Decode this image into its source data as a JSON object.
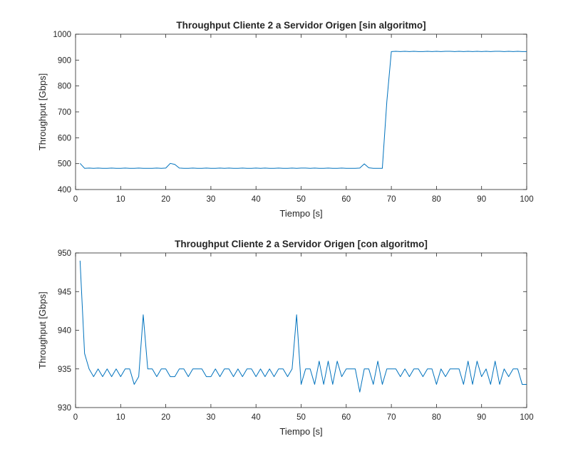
{
  "chart_data": [
    {
      "type": "line",
      "title": "Throughput Cliente 2 a Servidor Origen [sin algoritmo]",
      "xlabel": "Tiempo [s]",
      "ylabel": "Throughput [Gbps]",
      "xlim": [
        0,
        100
      ],
      "ylim": [
        400,
        1000
      ],
      "xticks": [
        0,
        10,
        20,
        30,
        40,
        50,
        60,
        70,
        80,
        90,
        100
      ],
      "yticks": [
        400,
        500,
        600,
        700,
        800,
        900,
        1000
      ],
      "grid": false,
      "line_color": "#0072BD",
      "x": [
        1,
        2,
        3,
        4,
        5,
        6,
        7,
        8,
        9,
        10,
        11,
        12,
        13,
        14,
        15,
        16,
        17,
        18,
        19,
        20,
        21,
        22,
        23,
        24,
        25,
        26,
        27,
        28,
        29,
        30,
        31,
        32,
        33,
        34,
        35,
        36,
        37,
        38,
        39,
        40,
        41,
        42,
        43,
        44,
        45,
        46,
        47,
        48,
        49,
        50,
        51,
        52,
        53,
        54,
        55,
        56,
        57,
        58,
        59,
        60,
        61,
        62,
        63,
        64,
        65,
        66,
        67,
        68,
        69,
        70,
        71,
        72,
        73,
        74,
        75,
        76,
        77,
        78,
        79,
        80,
        81,
        82,
        83,
        84,
        85,
        86,
        87,
        88,
        89,
        90,
        91,
        92,
        93,
        94,
        95,
        96,
        97,
        98,
        99,
        100
      ],
      "values": [
        501,
        482,
        483,
        482,
        483,
        482,
        482,
        483,
        482,
        482,
        483,
        482,
        482,
        483,
        482,
        482,
        482,
        483,
        482,
        483,
        501,
        497,
        483,
        482,
        482,
        483,
        482,
        482,
        483,
        482,
        482,
        483,
        482,
        483,
        482,
        482,
        483,
        482,
        482,
        483,
        482,
        483,
        482,
        482,
        483,
        482,
        482,
        483,
        482,
        483,
        483,
        482,
        483,
        482,
        482,
        483,
        482,
        482,
        483,
        482,
        482,
        482,
        483,
        499,
        484,
        482,
        482,
        482,
        740,
        933,
        934,
        933,
        934,
        933,
        934,
        933,
        933,
        934,
        933,
        934,
        933,
        934,
        934,
        933,
        934,
        933,
        934,
        933,
        934,
        933,
        934,
        933,
        934,
        934,
        933,
        934,
        933,
        934,
        933,
        933
      ]
    },
    {
      "type": "line",
      "title": "Throughput Cliente 2 a Servidor Origen [con algoritmo]",
      "xlabel": "Tiempo [s]",
      "ylabel": "Throughput [Gbps]",
      "xlim": [
        0,
        100
      ],
      "ylim": [
        930,
        950
      ],
      "xticks": [
        0,
        10,
        20,
        30,
        40,
        50,
        60,
        70,
        80,
        90,
        100
      ],
      "yticks": [
        930,
        935,
        940,
        945,
        950
      ],
      "grid": false,
      "line_color": "#0072BD",
      "x": [
        1,
        2,
        3,
        4,
        5,
        6,
        7,
        8,
        9,
        10,
        11,
        12,
        13,
        14,
        15,
        16,
        17,
        18,
        19,
        20,
        21,
        22,
        23,
        24,
        25,
        26,
        27,
        28,
        29,
        30,
        31,
        32,
        33,
        34,
        35,
        36,
        37,
        38,
        39,
        40,
        41,
        42,
        43,
        44,
        45,
        46,
        47,
        48,
        49,
        50,
        51,
        52,
        53,
        54,
        55,
        56,
        57,
        58,
        59,
        60,
        61,
        62,
        63,
        64,
        65,
        66,
        67,
        68,
        69,
        70,
        71,
        72,
        73,
        74,
        75,
        76,
        77,
        78,
        79,
        80,
        81,
        82,
        83,
        84,
        85,
        86,
        87,
        88,
        89,
        90,
        91,
        92,
        93,
        94,
        95,
        96,
        97,
        98,
        99,
        100
      ],
      "values": [
        949,
        937,
        935,
        934,
        935,
        934,
        935,
        934,
        935,
        934,
        935,
        935,
        933,
        934,
        942,
        935,
        935,
        934,
        935,
        935,
        934,
        934,
        935,
        935,
        934,
        935,
        935,
        935,
        934,
        934,
        935,
        934,
        935,
        935,
        934,
        935,
        934,
        935,
        935,
        934,
        935,
        934,
        935,
        934,
        935,
        935,
        934,
        935,
        942,
        933,
        935,
        935,
        933,
        936,
        933,
        936,
        933,
        936,
        934,
        935,
        935,
        935,
        932,
        935,
        935,
        933,
        936,
        933,
        935,
        935,
        935,
        934,
        935,
        934,
        935,
        935,
        934,
        935,
        935,
        933,
        935,
        934,
        935,
        935,
        935,
        933,
        936,
        933,
        936,
        934,
        935,
        933,
        936,
        933,
        935,
        934,
        935,
        935,
        933,
        933
      ]
    }
  ]
}
